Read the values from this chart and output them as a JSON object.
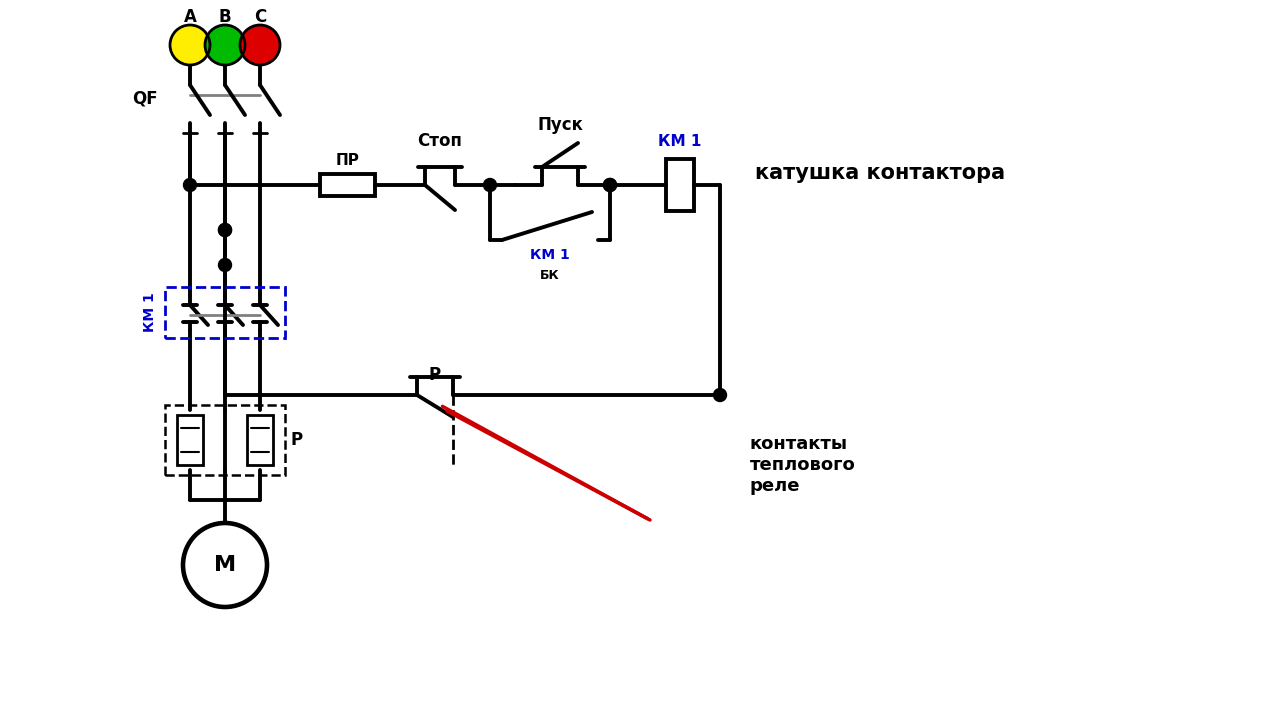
{
  "bg_color": "#ffffff",
  "line_color": "#000000",
  "blue_color": "#0000cc",
  "red_color": "#cc0000",
  "phase_A_color": "#ffee00",
  "phase_B_color": "#00bb00",
  "phase_C_color": "#dd0000",
  "label_A": "A",
  "label_B": "B",
  "label_C": "C",
  "label_QF": "QF",
  "label_PR": "ПР",
  "label_STOP": "Стоп",
  "label_START": "Пуск",
  "label_KM1_coil": "КМ 1",
  "label_KM1_bk": "КМ 1",
  "label_BK": "БК",
  "label_KM1_power": "КМ 1",
  "label_P_relay": "Р",
  "label_P_thermal": "Р",
  "label_M": "М",
  "label_katushka": "катушка контактора",
  "label_kontakty": "контакты\nтеплового\nреле"
}
